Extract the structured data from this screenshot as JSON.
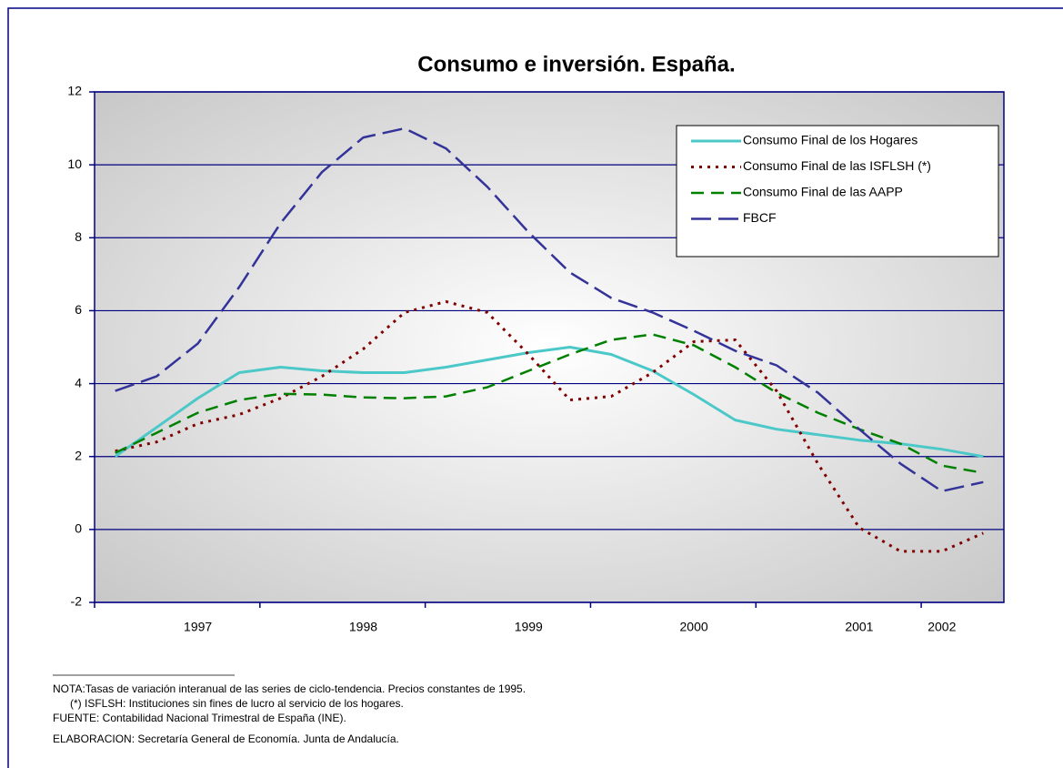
{
  "chart_data": {
    "type": "line",
    "title": "Consumo e inversión. España.",
    "categories": [
      null,
      null,
      "1997",
      null,
      null,
      null,
      "1998",
      null,
      null,
      null,
      "1999",
      null,
      null,
      null,
      "2000",
      null,
      null,
      null,
      "2001",
      null,
      "2002",
      null
    ],
    "series": [
      {
        "name": "Consumo Final de los Hogares",
        "color": "#4cc8c8",
        "style": "solid",
        "values": [
          2.0,
          2.8,
          3.6,
          4.3,
          4.45,
          4.35,
          4.3,
          4.3,
          4.45,
          4.65,
          4.85,
          5.0,
          4.8,
          4.35,
          3.7,
          3.0,
          2.75,
          2.6,
          2.45,
          2.35,
          2.2,
          2.0
        ]
      },
      {
        "name": "Consumo Final de las ISFLSH (*)",
        "color": "#800000",
        "style": "dotted",
        "values": [
          2.15,
          2.4,
          2.9,
          3.15,
          3.6,
          4.2,
          4.95,
          5.95,
          6.25,
          5.95,
          4.8,
          3.55,
          3.65,
          4.3,
          5.15,
          5.2,
          3.8,
          1.8,
          0.05,
          -0.6,
          -0.6,
          -0.1
        ]
      },
      {
        "name": "Consumo Final de las AAPP",
        "color": "#008000",
        "style": "dashed",
        "values": [
          2.1,
          2.65,
          3.2,
          3.55,
          3.72,
          3.7,
          3.62,
          3.6,
          3.65,
          3.9,
          4.35,
          4.8,
          5.2,
          5.35,
          5.05,
          4.45,
          3.75,
          3.2,
          2.75,
          2.35,
          1.75,
          1.55
        ]
      },
      {
        "name": "FBCF",
        "color": "#333399",
        "style": "longdash",
        "values": [
          3.8,
          4.2,
          5.1,
          6.65,
          8.4,
          9.8,
          10.75,
          11.0,
          10.45,
          9.4,
          8.15,
          7.05,
          6.35,
          5.95,
          5.45,
          4.9,
          4.5,
          3.75,
          2.75,
          1.8,
          1.05,
          1.3
        ]
      }
    ],
    "ylim": [
      -2,
      12
    ],
    "yticks": [
      -2,
      0,
      2,
      4,
      6,
      8,
      10,
      12
    ],
    "grid": true,
    "legend": "top-right",
    "notes": [
      "NOTA:Tasas de variación interanual de las series de ciclo-tendencia. Precios constantes de 1995.",
      "(*) ISFLSH: Instituciones sin fines de lucro al servicio de los hogares.",
      "FUENTE: Contabilidad Nacional Trimestral de España (INE).",
      "ELABORACION: Secretaría General de Economía. Junta de Andalucía."
    ]
  }
}
